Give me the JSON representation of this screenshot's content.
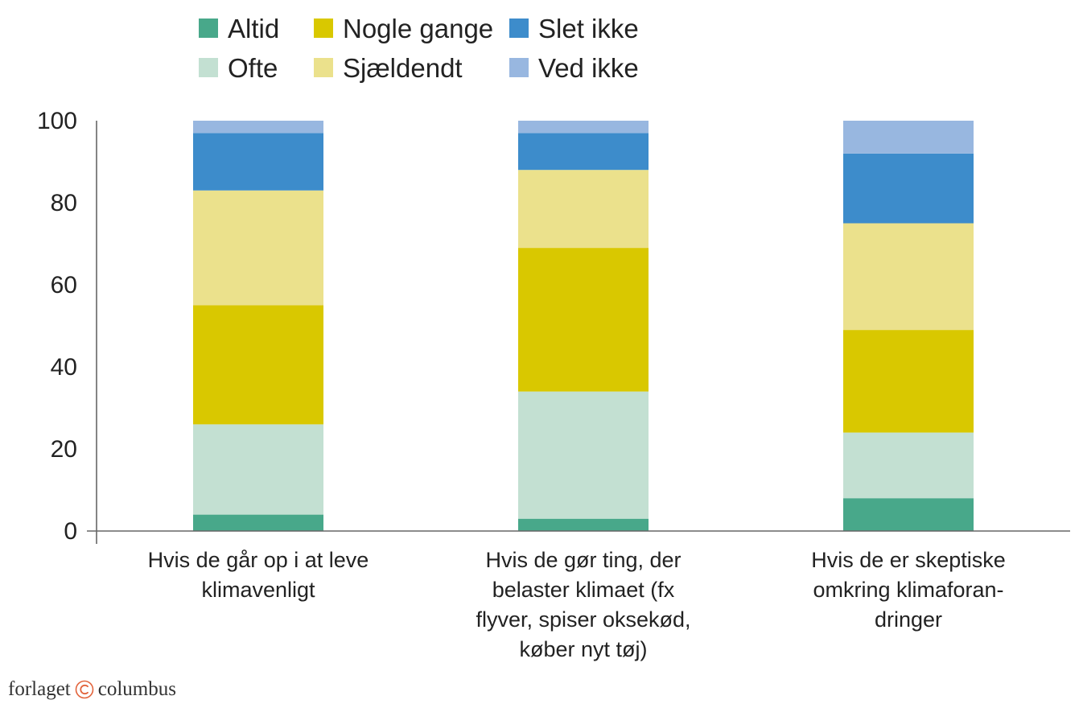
{
  "chart_data": {
    "type": "bar",
    "stacked": true,
    "categories": [
      [
        "Hvis de går op i at leve",
        "klimavenligt"
      ],
      [
        "Hvis de gør ting, der",
        "belaster klimaet (fx",
        "flyver, spiser oksekød,",
        "køber nyt tøj)"
      ],
      [
        "Hvis de er skeptiske",
        "omkring klimaforan-",
        "dringer"
      ]
    ],
    "series": [
      {
        "name": "Altid",
        "color": "#48a88a",
        "values": [
          4,
          3,
          8
        ]
      },
      {
        "name": "Ofte",
        "color": "#c3e0d2",
        "values": [
          22,
          31,
          16
        ]
      },
      {
        "name": "Nogle gange",
        "color": "#d9c800",
        "values": [
          29,
          35,
          25
        ]
      },
      {
        "name": "Sjældendt",
        "color": "#ebe18c",
        "values": [
          28,
          19,
          26
        ]
      },
      {
        "name": "Slet ikke",
        "color": "#3d8ccb",
        "values": [
          14,
          9,
          17
        ]
      },
      {
        "name": "Ved ikke",
        "color": "#98b7e0",
        "values": [
          3,
          3,
          8
        ]
      }
    ],
    "legend_order": [
      "Altid",
      "Nogle gange",
      "Slet ikke",
      "Ofte",
      "Sjældendt",
      "Ved ikke"
    ],
    "ylim": [
      0,
      100
    ],
    "yticks": [
      "0",
      "20",
      "40",
      "60",
      "80",
      "100"
    ],
    "legend_position": "top",
    "grid": false
  },
  "footer": {
    "brand_left": "forlaget",
    "brand_right": "columbus",
    "logo_icon": "copyright-circle-icon",
    "logo_color": "#e2643c"
  }
}
